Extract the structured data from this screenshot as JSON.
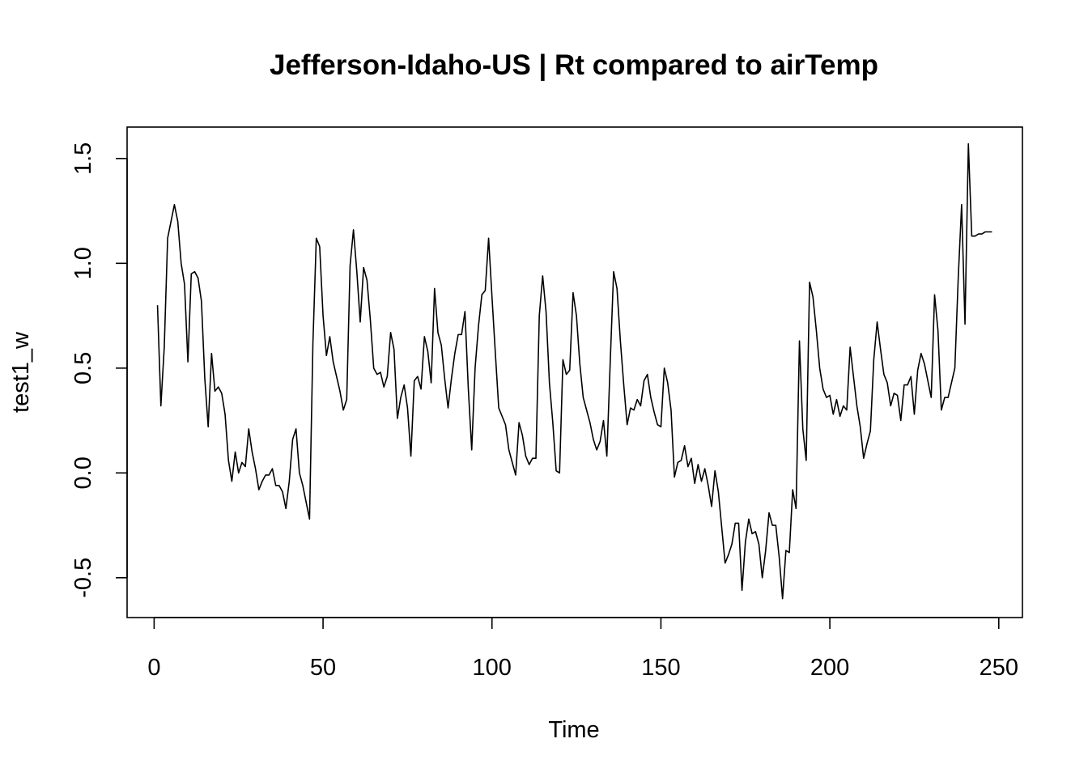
{
  "chart_data": {
    "type": "line",
    "title": "Jefferson-Idaho-US | Rt compared to airTemp",
    "xlabel": "Time",
    "ylabel": "test1_w",
    "xlim": [
      -8,
      257
    ],
    "ylim": [
      -0.69,
      1.65
    ],
    "xticks": [
      0,
      50,
      100,
      150,
      200,
      250
    ],
    "yticks": [
      -0.5,
      0.0,
      0.5,
      1.0,
      1.5
    ],
    "xtick_labels": [
      "0",
      "50",
      "100",
      "150",
      "200",
      "250"
    ],
    "ytick_labels": [
      "-0.5",
      "0.0",
      "0.5",
      "1.0",
      "1.5"
    ],
    "grid": false,
    "series": [
      {
        "color": "#000000",
        "x_start": 1,
        "values": [
          0.8,
          0.32,
          0.6,
          1.12,
          1.2,
          1.28,
          1.2,
          1.0,
          0.9,
          0.53,
          0.95,
          0.96,
          0.93,
          0.82,
          0.45,
          0.22,
          0.57,
          0.39,
          0.41,
          0.38,
          0.28,
          0.06,
          -0.04,
          0.1,
          0.0,
          0.05,
          0.03,
          0.21,
          0.1,
          0.02,
          -0.08,
          -0.04,
          -0.01,
          -0.01,
          0.02,
          -0.06,
          -0.06,
          -0.09,
          -0.17,
          -0.04,
          0.16,
          0.21,
          0.0,
          -0.06,
          -0.14,
          -0.22,
          0.62,
          1.12,
          1.08,
          0.75,
          0.56,
          0.65,
          0.53,
          0.46,
          0.39,
          0.3,
          0.35,
          0.99,
          1.16,
          0.96,
          0.72,
          0.98,
          0.92,
          0.73,
          0.5,
          0.47,
          0.48,
          0.41,
          0.46,
          0.67,
          0.59,
          0.26,
          0.36,
          0.42,
          0.31,
          0.08,
          0.44,
          0.46,
          0.4,
          0.65,
          0.58,
          0.43,
          0.88,
          0.67,
          0.61,
          0.45,
          0.31,
          0.45,
          0.57,
          0.66,
          0.66,
          0.77,
          0.4,
          0.11,
          0.5,
          0.7,
          0.85,
          0.87,
          1.12,
          0.84,
          0.57,
          0.31,
          0.27,
          0.23,
          0.11,
          0.05,
          -0.01,
          0.24,
          0.18,
          0.08,
          0.04,
          0.07,
          0.07,
          0.75,
          0.94,
          0.77,
          0.43,
          0.24,
          0.01,
          0.0,
          0.54,
          0.47,
          0.49,
          0.86,
          0.75,
          0.52,
          0.36,
          0.3,
          0.24,
          0.16,
          0.11,
          0.15,
          0.25,
          0.08,
          0.53,
          0.96,
          0.88,
          0.63,
          0.42,
          0.23,
          0.31,
          0.3,
          0.35,
          0.32,
          0.44,
          0.47,
          0.36,
          0.29,
          0.23,
          0.22,
          0.5,
          0.43,
          0.3,
          -0.02,
          0.05,
          0.06,
          0.13,
          0.03,
          0.07,
          -0.05,
          0.04,
          -0.04,
          0.02,
          -0.06,
          -0.16,
          0.01,
          -0.09,
          -0.26,
          -0.43,
          -0.39,
          -0.34,
          -0.24,
          -0.24,
          -0.56,
          -0.33,
          -0.22,
          -0.29,
          -0.28,
          -0.34,
          -0.5,
          -0.37,
          -0.19,
          -0.25,
          -0.25,
          -0.4,
          -0.6,
          -0.37,
          -0.38,
          -0.08,
          -0.17,
          0.63,
          0.21,
          0.06,
          0.91,
          0.84,
          0.68,
          0.5,
          0.4,
          0.36,
          0.37,
          0.28,
          0.35,
          0.27,
          0.32,
          0.3,
          0.6,
          0.46,
          0.32,
          0.22,
          0.07,
          0.14,
          0.2,
          0.54,
          0.72,
          0.59,
          0.47,
          0.43,
          0.32,
          0.38,
          0.37,
          0.25,
          0.42,
          0.42,
          0.46,
          0.28,
          0.49,
          0.57,
          0.52,
          0.44,
          0.36,
          0.85,
          0.68,
          0.3,
          0.36,
          0.36,
          0.43,
          0.5,
          0.93,
          1.28,
          0.71,
          1.57,
          1.13,
          1.13,
          1.14,
          1.14,
          1.15,
          1.15,
          1.15
        ]
      }
    ]
  }
}
